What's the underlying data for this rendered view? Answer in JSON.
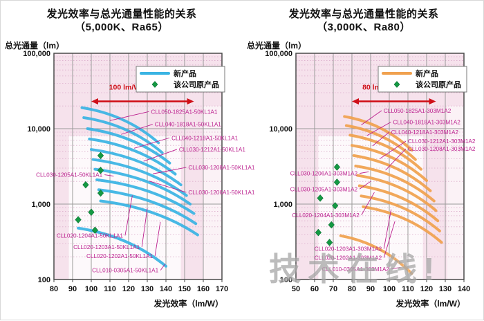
{
  "watermark": {
    "text": "技术在线!"
  },
  "chart_data": [
    {
      "type": "line",
      "title": "发光效率与总光通量性能的关系",
      "subtitle": "（5,000K、Ra65）",
      "xlabel": "发光效率（lm/W）",
      "ylabel": "总光通量（lm）",
      "xlim": [
        80,
        170
      ],
      "xticks": [
        80,
        90,
        100,
        110,
        120,
        130,
        140,
        150,
        160,
        170
      ],
      "yscale": "log",
      "ylim": [
        100,
        100000
      ],
      "ytick_labels": [
        "100,000",
        "10,000",
        "1,000",
        "100"
      ],
      "grid": true,
      "legend": {
        "position": "top-right",
        "new_label": "新产品",
        "original_label": "该公司原产品"
      },
      "series_color": "#3ab4e3",
      "original_color": "#149a43",
      "label_color": "#bb1f8e",
      "plot_bg_color": "#f6e2ec",
      "range_annotation": {
        "text": "100 lm/W~155 lm/W",
        "from": 100,
        "to": 155,
        "color": "#cf1019"
      },
      "series": [
        {
          "name": "CLL050-1825A1-50KL1A1",
          "x": [
            95,
            136
          ],
          "y": [
            19000,
            6500
          ],
          "label_anchor": "start",
          "label_pos": [
            132,
            16500
          ],
          "leader_to": [
            110,
            12800
          ]
        },
        {
          "name": "CLL040-1818A1-50KL1A1",
          "x": [
            96,
            138
          ],
          "y": [
            14000,
            4800
          ],
          "label_anchor": "start",
          "label_pos": [
            134,
            11200
          ],
          "leader_to": [
            116,
            8400
          ]
        },
        {
          "name": "CLL040-1218A1-50KL1A1",
          "x": [
            98,
            142
          ],
          "y": [
            10000,
            3500
          ],
          "label_anchor": "start",
          "label_pos": [
            143,
            7400
          ],
          "leader_to": [
            123,
            5500
          ]
        },
        {
          "name": "CLL030-1212A1-50KL1A1",
          "x": [
            99,
            145
          ],
          "y": [
            7300,
            2500
          ],
          "label_anchor": "start",
          "label_pos": [
            147,
            5200
          ],
          "leader_to": [
            128,
            3700
          ]
        },
        {
          "name": "CLL030-1208A1-50KL1A1",
          "x": [
            100,
            148
          ],
          "y": [
            5300,
            1800
          ],
          "label_anchor": "start",
          "label_pos": [
            152,
            3000
          ],
          "leader_to": [
            133,
            2520
          ]
        },
        {
          "name": "CLL030-1206A1-50KL1A1",
          "x": [
            101,
            151
          ],
          "y": [
            3900,
            1300
          ],
          "label_anchor": "start",
          "label_pos": [
            152,
            1400
          ],
          "leader_to": [
            131,
            2020
          ]
        },
        {
          "name": "CLL030-1205A1-50KL1A1",
          "x": [
            102,
            153
          ],
          "y": [
            2900,
            1000
          ],
          "label_anchor": "end",
          "label_pos": [
            106,
            2400
          ],
          "leader_to": [
            112,
            2350
          ]
        },
        {
          "name": "CLL020-1204A1-50KL1A1",
          "x": [
            103,
            155
          ],
          "y": [
            2100,
            750
          ],
          "label_anchor": "end",
          "label_pos": [
            117,
            375
          ],
          "leader_to": [
            122,
            1300
          ]
        },
        {
          "name": "CLL020-1203A1-50KL1A1",
          "x": [
            104,
            156
          ],
          "y": [
            1550,
            550
          ],
          "label_anchor": "end",
          "label_pos": [
            126,
            265
          ],
          "leader_to": [
            130,
            880
          ]
        },
        {
          "name": "CLL020-1202A1-50KL1A1",
          "x": [
            105,
            157
          ],
          "y": [
            1100,
            390
          ],
          "label_anchor": "end",
          "label_pos": [
            133,
            200
          ],
          "leader_to": [
            137,
            580
          ]
        },
        {
          "name": "CLL010-0305A1-50KL1A1",
          "x": [
            93,
            140
          ],
          "y": [
            480,
            150
          ],
          "label_anchor": "end",
          "label_pos": [
            136,
            130
          ],
          "leader_to": [
            139.5,
            160
          ]
        }
      ],
      "original_points": [
        [
          105,
          4400
        ],
        [
          105,
          2800
        ],
        [
          97,
          1800
        ],
        [
          105,
          1400
        ],
        [
          100,
          780
        ],
        [
          93,
          620
        ],
        [
          102,
          450
        ]
      ]
    },
    {
      "type": "line",
      "title": "发光效率与总光通量性能的关系",
      "subtitle": "（3,000K、Ra80）",
      "xlabel": "发光效率（lm/W）",
      "ylabel": "总光通量（lm）",
      "xlim": [
        50,
        140
      ],
      "xticks": [
        50,
        60,
        70,
        80,
        90,
        100,
        110,
        120,
        130,
        140
      ],
      "yscale": "log",
      "ylim": [
        100,
        100000
      ],
      "ytick_labels": [
        "100,000",
        "10,000",
        "1,000",
        "100"
      ],
      "grid": true,
      "legend": {
        "position": "top-right",
        "new_label": "新产品",
        "original_label": "该公司原产品"
      },
      "series_color": "#f0a14f",
      "original_color": "#149a43",
      "label_color": "#bb1f8e",
      "plot_bg_color": "#f6e2ec",
      "range_annotation": {
        "text": "80 lm/W~125 lm/W",
        "from": 80,
        "to": 125,
        "color": "#cf1019"
      },
      "series": [
        {
          "name": "CLL050-1825A1-303M1A2",
          "x": [
            76,
            112
          ],
          "y": [
            14500,
            5200
          ],
          "label_anchor": "start",
          "label_pos": [
            97,
            17000
          ],
          "leader_to": [
            85,
            11200
          ]
        },
        {
          "name": "CLL040-1818A1-303M1A2",
          "x": [
            77,
            114
          ],
          "y": [
            11000,
            3900
          ],
          "label_anchor": "start",
          "label_pos": [
            102,
            12000
          ],
          "leader_to": [
            88,
            8100
          ]
        },
        {
          "name": "CLL040-1218A1-303M1A2",
          "x": [
            79,
            117
          ],
          "y": [
            8200,
            2900
          ],
          "label_anchor": "start",
          "label_pos": [
            101,
            8800
          ],
          "leader_to": [
            91,
            5900
          ]
        },
        {
          "name": "CLL030-1212A1-303M1A2",
          "x": [
            80,
            120
          ],
          "y": [
            6000,
            2050
          ],
          "label_anchor": "start",
          "label_pos": [
            110,
            6700
          ],
          "leader_to": [
            95,
            4000
          ]
        },
        {
          "name": "CLL030-1208A1-303M1A2",
          "x": [
            81,
            122
          ],
          "y": [
            4400,
            1500
          ],
          "label_anchor": "start",
          "label_pos": [
            110,
            5300
          ],
          "leader_to": [
            98,
            2810
          ]
        },
        {
          "name": "CLL030-1206A1-303M1A2",
          "x": [
            82,
            124
          ],
          "y": [
            3200,
            1100
          ],
          "label_anchor": "end",
          "label_pos": [
            83,
            2500
          ],
          "leader_to": [
            89,
            2680
          ]
        },
        {
          "name": "CLL030-1205A1-303M1A2",
          "x": [
            83,
            125
          ],
          "y": [
            2400,
            820
          ],
          "label_anchor": "end",
          "label_pos": [
            83,
            1550
          ],
          "leader_to": [
            90,
            2000
          ]
        },
        {
          "name": "CLL020-1204A1-303M1A2",
          "x": [
            84,
            126
          ],
          "y": [
            1750,
            600
          ],
          "label_anchor": "end",
          "label_pos": [
            84,
            700
          ],
          "leader_to": [
            92,
            1430
          ]
        },
        {
          "name": "CLL020-1203A1-303M1A2",
          "x": [
            85,
            127
          ],
          "y": [
            1280,
            440
          ],
          "label_anchor": "end",
          "label_pos": [
            96,
            250
          ],
          "leader_to": [
            101,
            850
          ]
        },
        {
          "name": "CLL020-1202A1-303M1A2",
          "x": [
            86,
            128
          ],
          "y": [
            920,
            310
          ],
          "label_anchor": "end",
          "label_pos": [
            96,
            190
          ],
          "leader_to": [
            103,
            590
          ]
        },
        {
          "name": "CLL010-0305A1-303M1A2",
          "x": [
            74,
            112
          ],
          "y": [
            380,
            120
          ],
          "label_anchor": "end",
          "label_pos": [
            100,
            135
          ],
          "leader_to": [
            106,
            145
          ]
        }
      ],
      "original_points": [
        [
          72,
          3100
        ],
        [
          72,
          1950
        ],
        [
          63,
          1200
        ],
        [
          71,
          950
        ],
        [
          69,
          530
        ],
        [
          62,
          420
        ],
        [
          68,
          310
        ]
      ]
    }
  ]
}
